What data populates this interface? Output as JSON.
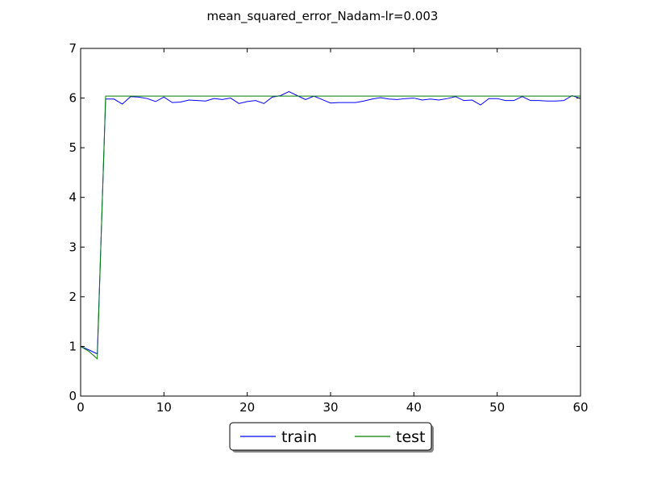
{
  "chart_data": {
    "type": "line",
    "title": "mean_squared_error_Nadam-lr=0.003",
    "xlabel": "",
    "ylabel": "",
    "xlim": [
      0,
      60
    ],
    "ylim": [
      0,
      7
    ],
    "x_ticks": [
      "0",
      "10",
      "20",
      "30",
      "40",
      "50",
      "60"
    ],
    "y_ticks": [
      "0",
      "1",
      "2",
      "3",
      "4",
      "5",
      "6",
      "7"
    ],
    "grid": false,
    "legend_position": "bottom-center",
    "x": [
      0,
      1,
      2,
      3,
      4,
      5,
      6,
      7,
      8,
      9,
      10,
      11,
      12,
      13,
      14,
      15,
      16,
      17,
      18,
      19,
      20,
      21,
      22,
      23,
      24,
      25,
      26,
      27,
      28,
      29,
      30,
      31,
      32,
      33,
      34,
      35,
      36,
      37,
      38,
      39,
      40,
      41,
      42,
      43,
      44,
      45,
      46,
      47,
      48,
      49,
      50,
      51,
      52,
      53,
      54,
      55,
      56,
      57,
      58,
      59,
      60
    ],
    "series": [
      {
        "name": "train",
        "color": "#0000ff",
        "values": [
          1.0,
          0.93,
          0.85,
          5.98,
          5.98,
          5.88,
          6.03,
          6.02,
          5.99,
          5.93,
          6.02,
          5.91,
          5.92,
          5.96,
          5.95,
          5.94,
          5.99,
          5.97,
          6.0,
          5.89,
          5.93,
          5.95,
          5.89,
          6.02,
          6.05,
          6.13,
          6.05,
          5.97,
          6.04,
          5.97,
          5.9,
          5.91,
          5.91,
          5.91,
          5.94,
          5.98,
          6.01,
          5.98,
          5.97,
          5.99,
          6.0,
          5.96,
          5.98,
          5.96,
          5.99,
          6.03,
          5.95,
          5.96,
          5.86,
          5.99,
          5.99,
          5.95,
          5.95,
          6.03,
          5.95,
          5.95,
          5.94,
          5.94,
          5.95,
          6.05,
          5.99
        ]
      },
      {
        "name": "test",
        "color": "#008000",
        "values": [
          1.0,
          0.9,
          0.75,
          6.04,
          6.04,
          6.04,
          6.04,
          6.04,
          6.04,
          6.04,
          6.04,
          6.04,
          6.04,
          6.04,
          6.04,
          6.04,
          6.04,
          6.04,
          6.04,
          6.04,
          6.04,
          6.04,
          6.04,
          6.04,
          6.04,
          6.04,
          6.04,
          6.04,
          6.04,
          6.04,
          6.04,
          6.04,
          6.04,
          6.04,
          6.04,
          6.04,
          6.04,
          6.04,
          6.04,
          6.04,
          6.04,
          6.04,
          6.04,
          6.04,
          6.04,
          6.04,
          6.04,
          6.04,
          6.04,
          6.04,
          6.04,
          6.04,
          6.04,
          6.04,
          6.04,
          6.04,
          6.04,
          6.04,
          6.04,
          6.04,
          6.04
        ]
      }
    ]
  }
}
